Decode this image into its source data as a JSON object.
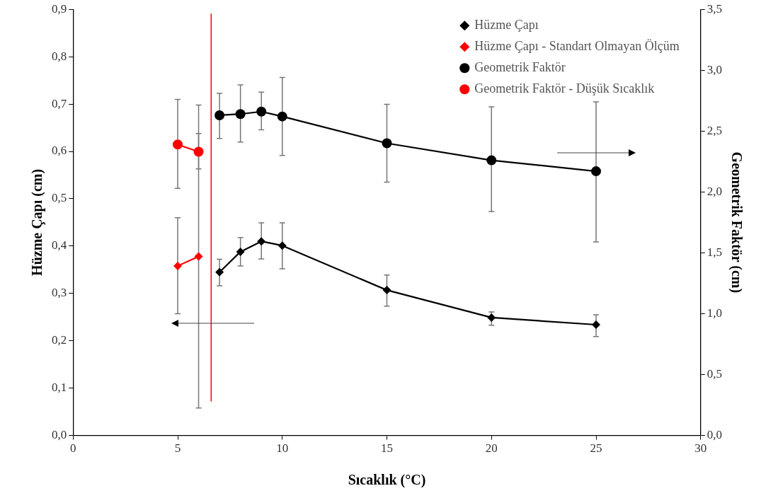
{
  "chart_data": {
    "type": "line",
    "xlabel": "Sıcaklık (°C)",
    "ylabel": "Hüzme Çapı (cm)",
    "y2label": "Geometrik Faktör (cm)",
    "xlim": [
      0,
      30
    ],
    "xticks": [
      0,
      5,
      10,
      15,
      20,
      25,
      30
    ],
    "ylim": [
      0,
      0.9
    ],
    "yticks": [
      {
        "value": 0,
        "label": "0,0"
      },
      {
        "value": 0.1,
        "label": "0,1"
      },
      {
        "value": 0.2,
        "label": "0,2"
      },
      {
        "value": 0.3,
        "label": "0,3"
      },
      {
        "value": 0.4,
        "label": "0,4"
      },
      {
        "value": 0.5,
        "label": "0,5"
      },
      {
        "value": 0.6,
        "label": "0,6"
      },
      {
        "value": 0.7,
        "label": "0,7"
      },
      {
        "value": 0.8,
        "label": "0,8"
      },
      {
        "value": 0.9,
        "label": "0,9"
      }
    ],
    "y2lim": [
      0,
      3.5
    ],
    "y2ticks": [
      {
        "value": 0,
        "label": "0,0"
      },
      {
        "value": 0.5,
        "label": "0,5"
      },
      {
        "value": 1,
        "label": "1,0"
      },
      {
        "value": 1.5,
        "label": "1,5"
      },
      {
        "value": 2,
        "label": "2,0"
      },
      {
        "value": 2.5,
        "label": "2,5"
      },
      {
        "value": 3,
        "label": "3,0"
      },
      {
        "value": 3.5,
        "label": "3,5"
      }
    ],
    "grid": false,
    "legend": "top right",
    "line_style": "solid",
    "ref_lines": [
      {
        "axis": "x",
        "value": 6.6,
        "color": "#ff0000"
      }
    ],
    "series": [
      {
        "name": "Hüzme Çapı",
        "color": "#000000",
        "marker": "diamond",
        "x": [
          7,
          8,
          9,
          10,
          15,
          20,
          25
        ],
        "values": [
          0.345,
          0.388,
          0.41,
          0.401,
          0.307,
          0.249,
          0.234
        ],
        "errors": [
          [
            0.316,
            0.372
          ],
          [
            0.358,
            0.418
          ],
          [
            0.373,
            0.449
          ],
          [
            0.352,
            0.449
          ],
          [
            0.273,
            0.339
          ],
          [
            0.233,
            0.261
          ],
          [
            0.209,
            0.255
          ]
        ]
      },
      {
        "name": "Hüzme Çapı - Standart Olmayan Ölçüm",
        "color": "#ff0000",
        "marker": "diamond",
        "x": [
          5,
          6
        ],
        "values": [
          0.358,
          0.378
        ],
        "errors": [
          [
            0.257,
            0.46
          ],
          [
            0.058,
            0.698
          ]
        ]
      },
      {
        "name": "Geometrik Faktör",
        "color": "#000000",
        "marker": "circle",
        "axis": "y2",
        "x": [
          7,
          8,
          9,
          10,
          15,
          20,
          25
        ],
        "values": [
          2.63,
          2.64,
          2.66,
          2.62,
          2.4,
          2.26,
          2.17
        ],
        "errors": [
          [
            2.44,
            2.81
          ],
          [
            2.41,
            2.88
          ],
          [
            2.51,
            2.82
          ],
          [
            2.3,
            2.94
          ],
          [
            2.08,
            2.72
          ],
          [
            1.84,
            2.7
          ],
          [
            1.59,
            2.74
          ]
        ]
      },
      {
        "name": "Geometrik Faktör - Düşük Sıcaklık",
        "color": "#ff0000",
        "marker": "circle",
        "axis": "y2",
        "x": [
          5,
          6
        ],
        "values": [
          2.39,
          2.33
        ],
        "errors": [
          [
            2.03,
            2.76
          ],
          [
            2.19,
            2.48
          ]
        ]
      }
    ]
  }
}
